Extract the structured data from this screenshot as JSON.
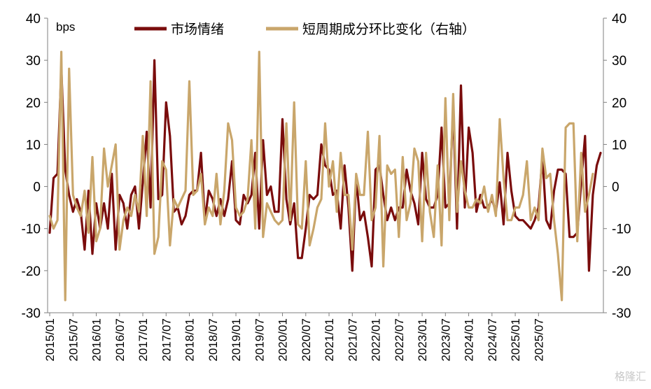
{
  "chart_data": {
    "type": "line",
    "unit_label": "bps",
    "x_start": "2015/01",
    "x_tick_labels": [
      "2015/01",
      "2015/07",
      "2016/01",
      "2016/07",
      "2017/01",
      "2017/07",
      "2018/01",
      "2018/07",
      "2019/01",
      "2019/07",
      "2020/01",
      "2020/07",
      "2021/01",
      "2021/07",
      "2022/01",
      "2022/07",
      "2023/01",
      "2023/07",
      "2024/01",
      "2024/07",
      "2025/01",
      "2025/07"
    ],
    "y_left": {
      "min": -30,
      "max": 40,
      "step": 10,
      "ticks": [
        -30,
        -20,
        -10,
        0,
        10,
        20,
        30,
        40
      ]
    },
    "y_right": {
      "min": -30,
      "max": 40,
      "step": 10,
      "ticks": [
        -30,
        -20,
        -10,
        0,
        10,
        20,
        30,
        40
      ]
    },
    "series": [
      {
        "name": "市场情绪",
        "color": "#7a0c0c",
        "axis": "left",
        "values": [
          -11,
          2,
          3,
          28,
          4,
          -2,
          -6,
          -3,
          -6,
          -15,
          -1,
          -16,
          -4,
          -10,
          -4,
          -10,
          3,
          -15,
          -2,
          -4,
          -10,
          -2,
          0,
          -10,
          1,
          13,
          -5,
          30,
          -3,
          -2,
          20,
          12,
          -6,
          -5,
          -9,
          -7,
          -2,
          -1,
          -1,
          8,
          -8,
          -1,
          -3,
          -7,
          -3,
          -7,
          -3,
          6,
          -8,
          -9,
          -2,
          -4,
          -2,
          8,
          -10,
          11,
          -2,
          0,
          -6,
          -6,
          16,
          -3,
          -9,
          -4,
          -17,
          -17,
          -10,
          -2,
          -3,
          -2,
          10,
          5,
          4,
          -2,
          -1,
          -10,
          5,
          -5,
          -20,
          2,
          -8,
          -6,
          -12,
          -19,
          4,
          5,
          -2,
          -8,
          -5,
          -8,
          -5,
          -5,
          4,
          -1,
          -4,
          -9,
          8,
          -3,
          -5,
          -5,
          -2,
          14,
          -5,
          -4,
          19,
          -10,
          24,
          -5,
          14,
          8,
          -6,
          -2,
          -5,
          -5,
          -3,
          -6,
          1,
          -9,
          8,
          -1,
          -7,
          -8,
          -8,
          -9,
          -10,
          -8,
          -5,
          7,
          -8,
          -10,
          -1,
          4,
          4,
          3,
          -12,
          -12,
          -11,
          1,
          12,
          -20,
          -2,
          5,
          8
        ]
      },
      {
        "name": "短周期成分环比变化（右轴）",
        "color": "#c9a66b",
        "axis": "right",
        "values": [
          -7,
          -10,
          -8,
          32,
          -27,
          28,
          -2,
          -5,
          -7,
          -1,
          -11,
          7,
          -13,
          -10,
          9,
          0,
          5,
          10,
          -15,
          -8,
          -5,
          -7,
          -2,
          -6,
          12,
          -7,
          25,
          -16,
          -12,
          6,
          4,
          -14,
          -3,
          -5,
          -3,
          -1,
          25,
          -2,
          -1,
          3,
          -9,
          -5,
          -7,
          3,
          -9,
          -1,
          15,
          11,
          -5,
          -7,
          -6,
          -3,
          11,
          -10,
          32,
          -12,
          -4,
          -6,
          -8,
          -9,
          -8,
          15,
          -8,
          20,
          -9,
          -10,
          6,
          -14,
          -10,
          -5,
          -3,
          15,
          0,
          6,
          -6,
          8,
          -2,
          -2,
          -15,
          3,
          -2,
          -2,
          13,
          -8,
          -5,
          12,
          -19,
          5,
          3,
          4,
          -12,
          7,
          -8,
          -4,
          9,
          6,
          -13,
          8,
          -6,
          -12,
          5,
          -14,
          21,
          -8,
          22,
          -6,
          6,
          -1,
          -5,
          -5,
          -3,
          -4,
          0,
          -6,
          -2,
          -7,
          16,
          2,
          -8,
          -8,
          -5,
          -5,
          -2,
          6,
          -8,
          -5,
          -8,
          9,
          2,
          3,
          -8,
          -16,
          -27,
          14,
          15,
          15,
          -13,
          8,
          -6,
          -2,
          3
        ]
      }
    ]
  },
  "watermark": "格隆汇"
}
